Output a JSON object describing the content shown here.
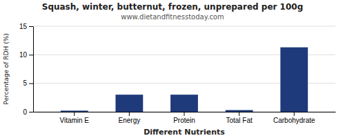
{
  "chart_data": {
    "type": "bar",
    "title": "Squash, winter, butternut, frozen, unprepared per 100g",
    "subtitle": "www.dietandfitnesstoday.com",
    "xlabel": "Different Nutrients",
    "ylabel": "Percentage of RDH (%)",
    "categories": [
      "Vitamin E",
      "Energy",
      "Protein",
      "Total Fat",
      "Carbohydrate"
    ],
    "values": [
      0.2,
      3.0,
      3.0,
      0.3,
      11.3
    ],
    "color": "#1f3a7a",
    "ylim": [
      0,
      15
    ],
    "yticks": [
      0,
      5,
      10,
      15
    ],
    "grid": true
  }
}
